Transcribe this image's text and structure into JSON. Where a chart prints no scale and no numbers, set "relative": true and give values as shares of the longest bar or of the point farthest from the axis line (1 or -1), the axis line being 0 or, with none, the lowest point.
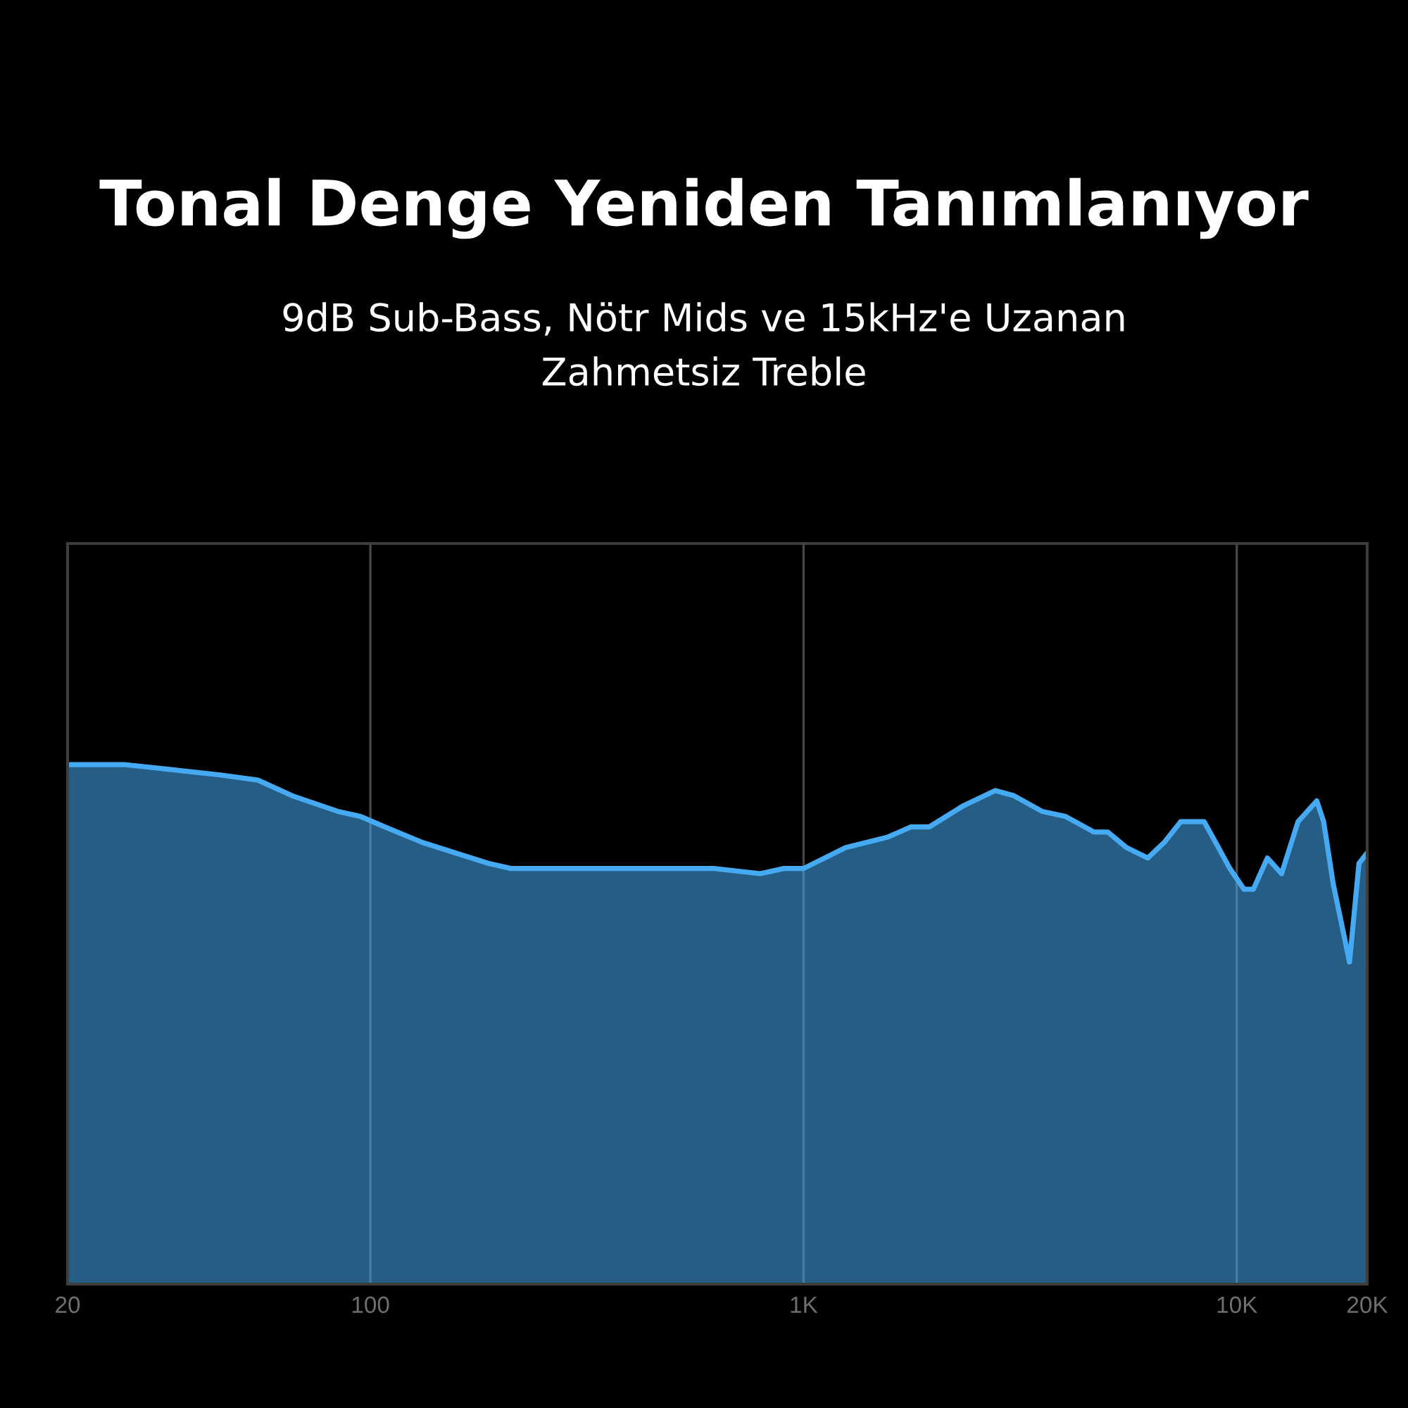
{
  "chart_data": {
    "type": "area",
    "title": "Tonal Denge Yeniden Tanımlanıyor",
    "subtitle": "9dB Sub-Bass, Nötr Mids ve 15kHz'e Uzanan\nZahmetsiz Treble",
    "relative": true,
    "log": "x",
    "grid": "x",
    "color": "#46aaf2",
    "xlim": [
      20,
      20000
    ],
    "xticks": [
      20,
      100,
      {
        "value": 1000,
        "label": "1K"
      },
      {
        "value": 10000,
        "label": "10K"
      },
      {
        "value": 20000,
        "label": "20K"
      }
    ],
    "x": [
      20,
      27,
      35,
      45,
      55,
      66,
      84,
      95,
      108,
      132,
      157,
      187,
      211,
      293,
      396,
      482,
      620,
      795,
      901,
      1000,
      1250,
      1560,
      1770,
      1950,
      2330,
      2770,
      3060,
      3550,
      4030,
      4680,
      5040,
      5570,
      6230,
      6800,
      7420,
      8410,
      8940,
      9640,
      10390,
      10920,
      11770,
      12690,
      13850,
      15300,
      15870,
      16700,
      18210,
      19150,
      20000
    ],
    "values": [
      1.0,
      1.0,
      0.99,
      0.98,
      0.97,
      0.94,
      0.91,
      0.9,
      0.88,
      0.85,
      0.83,
      0.81,
      0.8,
      0.8,
      0.8,
      0.8,
      0.8,
      0.79,
      0.8,
      0.8,
      0.84,
      0.86,
      0.88,
      0.88,
      0.92,
      0.95,
      0.94,
      0.91,
      0.9,
      0.87,
      0.87,
      0.84,
      0.82,
      0.85,
      0.89,
      0.89,
      0.85,
      0.8,
      0.76,
      0.76,
      0.82,
      0.79,
      0.89,
      0.93,
      0.89,
      0.77,
      0.62,
      0.81,
      0.83
    ]
  }
}
